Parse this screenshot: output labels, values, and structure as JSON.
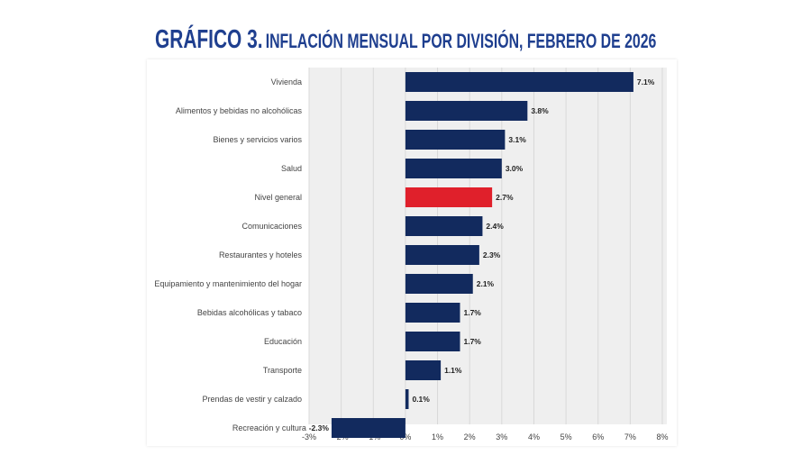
{
  "chart_data": {
    "type": "bar",
    "orientation": "horizontal",
    "title_prefix": "GRÁFICO 3.",
    "title": "INFLACIÓN MENSUAL POR DIVISIÓN, FEBRERO DE 2026",
    "categories": [
      "Vivienda",
      "Alimentos y bebidas no alcohólicas",
      "Bienes y servicios varios",
      "Salud",
      "Nivel general",
      "Comunicaciones",
      "Restaurantes y hoteles",
      "Equipamiento y mantenimiento del hogar",
      "Bebidas alcohólicas y tabaco",
      "Educación",
      "Transporte",
      "Prendas de vestir y calzado",
      "Recreación y cultura"
    ],
    "values": [
      7.1,
      3.8,
      3.1,
      3.0,
      2.7,
      2.4,
      2.3,
      2.1,
      1.7,
      1.7,
      1.1,
      0.1,
      -2.3
    ],
    "value_labels": [
      "7.1%",
      "3.8%",
      "3.1%",
      "3.0%",
      "2.7%",
      "2.4%",
      "2.3%",
      "2.1%",
      "1.7%",
      "1.7%",
      "1.1%",
      "0.1%",
      "-2.3%"
    ],
    "highlight": "Nivel general",
    "xlim": [
      -3,
      8
    ],
    "xticks": [
      "-3%",
      "-2%",
      "-1%",
      "0%",
      "1%",
      "2%",
      "3%",
      "4%",
      "5%",
      "6%",
      "7%",
      "8%"
    ],
    "grid": true,
    "colors": {
      "bar": "#122a5e",
      "highlight": "#e0202b",
      "plot_bg": "#efefef",
      "title": "#1f3f8f"
    }
  }
}
